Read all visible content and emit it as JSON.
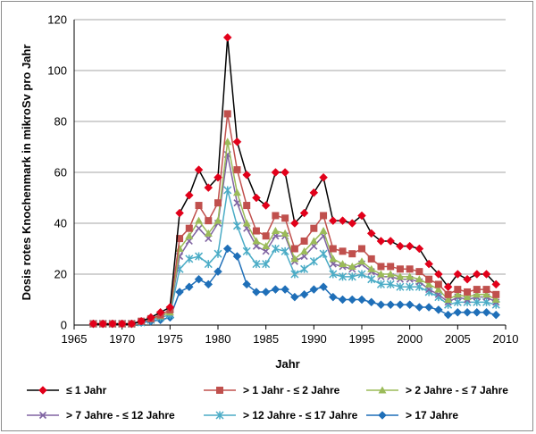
{
  "chart_data": {
    "type": "line",
    "title": "",
    "xlabel": "Jahr",
    "ylabel": "Dosis rotes Knochenmark in mikroSv pro Jahr",
    "xlim": [
      1965,
      2010
    ],
    "ylim": [
      0,
      120
    ],
    "xticks": [
      1965,
      1970,
      1975,
      1980,
      1985,
      1990,
      1995,
      2000,
      2005,
      2010
    ],
    "yticks": [
      0,
      20,
      40,
      60,
      80,
      100,
      120
    ],
    "grid": true,
    "legend_position": "bottom",
    "x": [
      1967,
      1968,
      1969,
      1970,
      1971,
      1972,
      1973,
      1974,
      1975,
      1976,
      1977,
      1978,
      1979,
      1980,
      1981,
      1982,
      1983,
      1984,
      1985,
      1986,
      1987,
      1988,
      1989,
      1990,
      1991,
      1992,
      1993,
      1994,
      1995,
      1996,
      1997,
      1998,
      1999,
      2000,
      2001,
      2002,
      2003,
      2004,
      2005,
      2006,
      2007,
      2008,
      2009
    ],
    "series": [
      {
        "name": "≤ 1 Jahr",
        "color": "#000000",
        "marker_color": "#e2001a",
        "marker": "diamond",
        "values": [
          0.5,
          0.5,
          0.5,
          0.5,
          0.5,
          1.5,
          3,
          5,
          7,
          44,
          51,
          61,
          54,
          58,
          113,
          72,
          59,
          50,
          47,
          60,
          60,
          40,
          44,
          52,
          58,
          41,
          41,
          40,
          43,
          36,
          33,
          33,
          31,
          31,
          30,
          24,
          20,
          15,
          20,
          18,
          20,
          20,
          16
        ]
      },
      {
        "name": "> 1 Jahr - ≤ 2 Jahre",
        "color": "#c0504d",
        "marker_color": "#c0504d",
        "marker": "square",
        "values": [
          0.5,
          0.5,
          0.5,
          0.5,
          0.5,
          1.5,
          2.5,
          4,
          6,
          34,
          38,
          47,
          41,
          48,
          83,
          61,
          47,
          37,
          35,
          43,
          42,
          30,
          33,
          38,
          43,
          30,
          29,
          28,
          30,
          26,
          23,
          23,
          22,
          22,
          21,
          18,
          16,
          12,
          14,
          13,
          14,
          14,
          12
        ]
      },
      {
        "name": "> 2 Jahre - ≤ 7 Jahre",
        "color": "#9bbb59",
        "marker_color": "#9bbb59",
        "marker": "triangle",
        "values": [
          0.5,
          0.5,
          0.5,
          0.5,
          0.5,
          1.5,
          2.5,
          3.5,
          5,
          30,
          35,
          41,
          36,
          41,
          72,
          52,
          40,
          33,
          31,
          37,
          36,
          26,
          29,
          33,
          37,
          26,
          24,
          23,
          25,
          22,
          20,
          20,
          19,
          19,
          18,
          16,
          14,
          10,
          12,
          11,
          12,
          12,
          10
        ]
      },
      {
        "name": "> 7 Jahre - ≤ 12 Jahre",
        "color": "#8064a2",
        "marker_color": "#8064a2",
        "marker": "x",
        "values": [
          0.5,
          0.5,
          0.5,
          0.5,
          0.5,
          1.5,
          2.5,
          3.5,
          5,
          27,
          33,
          38,
          34,
          40,
          67,
          48,
          38,
          31,
          29,
          35,
          35,
          25,
          27,
          31,
          35,
          24,
          23,
          22,
          24,
          21,
          19,
          19,
          18,
          18,
          17,
          14,
          12,
          9,
          11,
          10,
          11,
          11,
          9
        ]
      },
      {
        "name": "> 12 Jahre - ≤ 17 Jahre",
        "color": "#4bacc6",
        "marker_color": "#4bacc6",
        "marker": "star",
        "values": [
          0.5,
          0.5,
          0.5,
          0.5,
          0.5,
          1,
          2,
          3,
          4,
          22,
          26,
          27,
          24,
          28,
          53,
          39,
          29,
          24,
          24,
          30,
          29,
          20,
          22,
          25,
          28,
          20,
          19,
          19,
          20,
          18,
          16,
          16,
          15,
          15,
          15,
          13,
          11,
          8,
          9,
          9,
          9,
          9,
          8
        ]
      },
      {
        "name": "> 17 Jahre",
        "color": "#1f6fb8",
        "marker_color": "#1f6fb8",
        "marker": "diamond",
        "values": [
          0.5,
          0.5,
          0.5,
          0.5,
          0.5,
          1,
          1.5,
          2,
          3,
          13,
          15,
          18,
          16,
          21,
          30,
          27,
          16,
          13,
          13,
          14,
          14,
          11,
          12,
          14,
          15,
          11,
          10,
          10,
          10,
          9,
          8,
          8,
          8,
          8,
          7,
          7,
          6,
          4,
          5,
          5,
          5,
          5,
          4
        ]
      }
    ]
  }
}
